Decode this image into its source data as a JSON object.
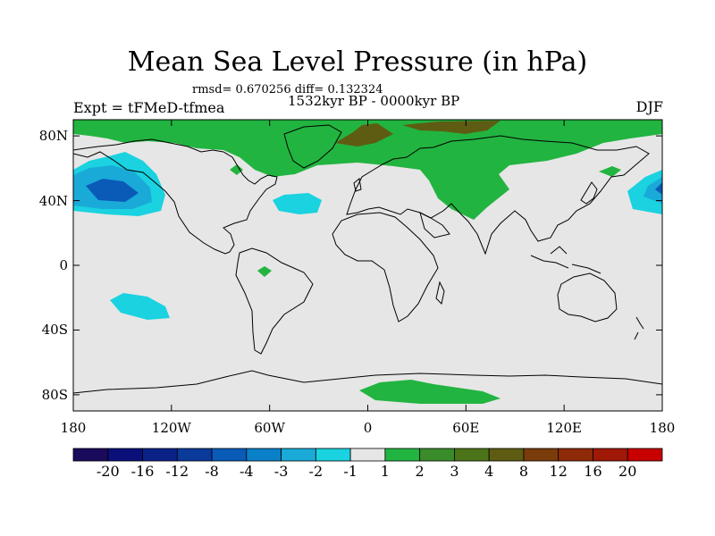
{
  "chart_data": {
    "type": "heatmap",
    "title": "Mean Sea Level Pressure (in hPa)",
    "stats": "rmsd= 0.670256 diff= 0.132324",
    "period": "1532kyr BP - 0000kyr BP",
    "experiment": "Expt = tFMeD-tfmea",
    "season": "DJF",
    "xlim": [
      -180,
      180
    ],
    "ylim": [
      -90,
      90
    ],
    "x_ticks": [
      {
        "value": -180,
        "label": "180"
      },
      {
        "value": -120,
        "label": "120W"
      },
      {
        "value": -60,
        "label": "60W"
      },
      {
        "value": 0,
        "label": "0"
      },
      {
        "value": 60,
        "label": "60E"
      },
      {
        "value": 120,
        "label": "120E"
      },
      {
        "value": 180,
        "label": "180"
      }
    ],
    "y_ticks": [
      {
        "value": 80,
        "label": "80N"
      },
      {
        "value": 40,
        "label": "40N"
      },
      {
        "value": 0,
        "label": "0"
      },
      {
        "value": -40,
        "label": "40S"
      },
      {
        "value": -80,
        "label": "80S"
      }
    ],
    "colorbar": {
      "levels": [
        "-20",
        "-16",
        "-12",
        "-8",
        "-4",
        "-3",
        "-2",
        "-1",
        "1",
        "2",
        "3",
        "4",
        "8",
        "12",
        "16",
        "20"
      ],
      "colors": [
        "#1a0a5c",
        "#0a0f7a",
        "#0a2288",
        "#0a3a9a",
        "#0a5ab8",
        "#0a80c8",
        "#1aaad8",
        "#1ad2e0",
        "#e6e6e6",
        "#22b440",
        "#3a8c2a",
        "#4c7418",
        "#5e5c12",
        "#7a3c0a",
        "#8e2a08",
        "#a01806",
        "#c80000"
      ]
    },
    "regions": [
      {
        "level": "1 to 2",
        "desc": "Arctic high-latitude band"
      },
      {
        "level": "4 to 8",
        "desc": "Central Arctic"
      },
      {
        "level": "1 to 2",
        "desc": "Central Asia"
      },
      {
        "level": "1 to 2",
        "desc": "Antarctica sector 20E-90E"
      },
      {
        "level": "-4 to -2",
        "desc": "North Pacific low"
      },
      {
        "level": "-2 to -1",
        "desc": "North Atlantic"
      },
      {
        "level": "-2 to -1",
        "desc": "South Pacific"
      }
    ]
  }
}
